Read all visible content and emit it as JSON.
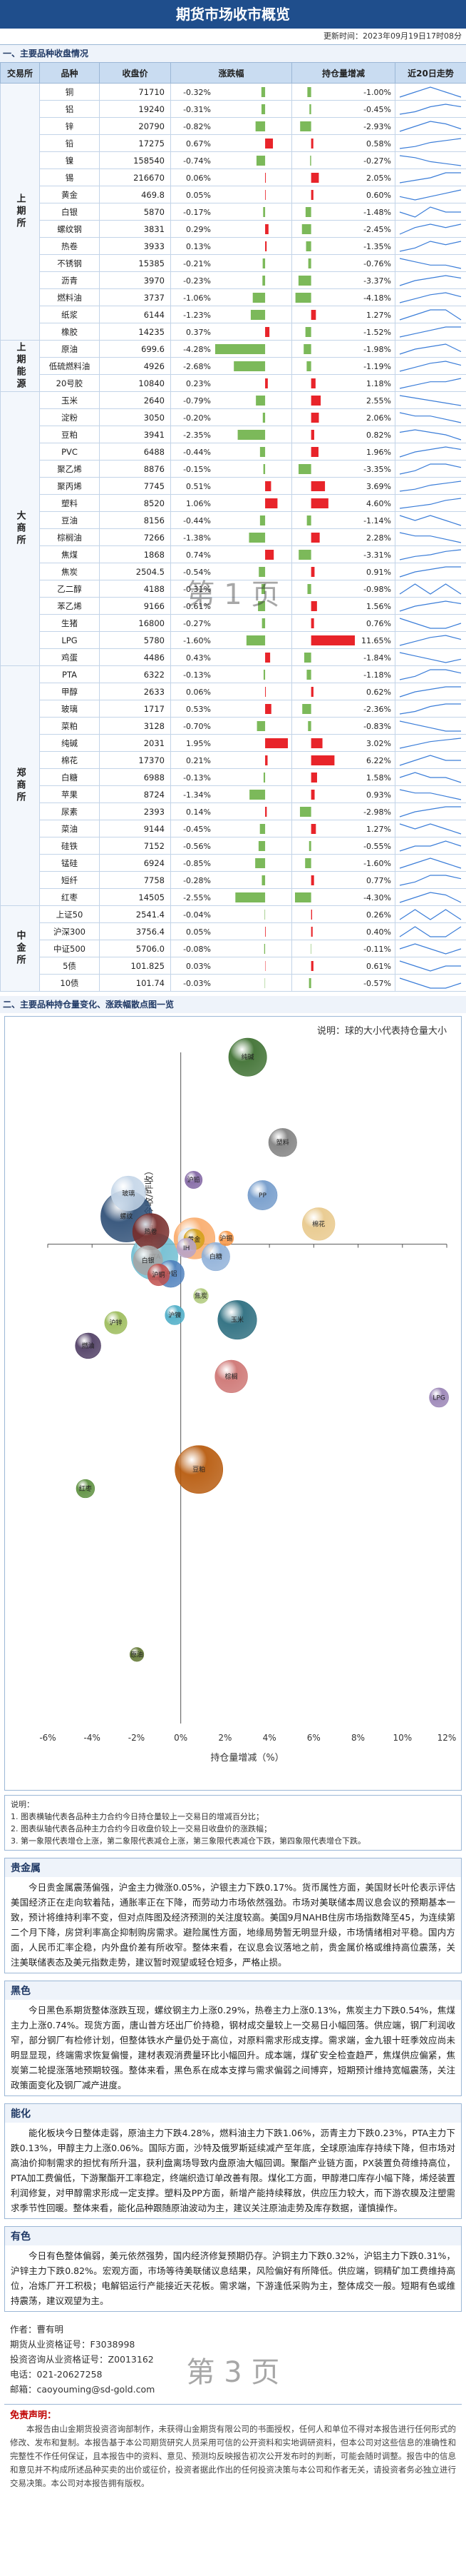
{
  "header": {
    "title": "期货市场收市概览",
    "update": "更新时间：2023年09月19日17时08分"
  },
  "sections": {
    "one": "一、主要品种收盘情况",
    "two": "二、主要品种持仓量变化、涨跌幅散点图一览"
  },
  "watermarks": [
    "第 1 页",
    "第 3 页"
  ],
  "table": {
    "columns": [
      "交易所",
      "品种",
      "收盘价",
      "涨跌幅",
      "持仓量增减",
      "近20日走势"
    ],
    "groups": [
      {
        "exchange": "上期所",
        "rows": [
          [
            "铜",
            "71710",
            -0.32,
            "-0.32%",
            -1.0,
            "-1.00%",
            [
              5,
              6,
              7,
              6,
              5
            ]
          ],
          [
            "铝",
            "19240",
            -0.31,
            "-0.31%",
            -0.45,
            "-0.45%",
            [
              3,
              4,
              6,
              7,
              6
            ]
          ],
          [
            "锌",
            "20790",
            -0.82,
            "-0.82%",
            -2.93,
            "-2.93%",
            [
              4,
              6,
              8,
              7,
              5
            ]
          ],
          [
            "铅",
            "17275",
            0.67,
            "0.67%",
            0.58,
            "0.58%",
            [
              2,
              3,
              5,
              6,
              7
            ]
          ],
          [
            "镍",
            "158540",
            -0.74,
            "-0.74%",
            -0.27,
            "-0.27%",
            [
              8,
              7,
              5,
              4,
              3
            ]
          ],
          [
            "锡",
            "216670",
            0.06,
            "0.06%",
            2.05,
            "2.05%",
            [
              4,
              5,
              6,
              8,
              8
            ]
          ],
          [
            "黄金",
            "469.8",
            0.05,
            "0.05%",
            0.6,
            "0.60%",
            [
              5,
              4,
              5,
              6,
              7
            ]
          ],
          [
            "白银",
            "5870",
            -0.17,
            "-0.17%",
            -1.48,
            "-1.48%",
            [
              6,
              5,
              7,
              6,
              6
            ]
          ],
          [
            "螺纹钢",
            "3831",
            0.29,
            "0.29%",
            -2.45,
            "-2.45%",
            [
              3,
              5,
              6,
              5,
              6
            ]
          ],
          [
            "热卷",
            "3933",
            0.13,
            "0.13%",
            -1.35,
            "-1.35%",
            [
              3,
              4,
              6,
              5,
              6
            ]
          ],
          [
            "不锈钢",
            "15385",
            -0.21,
            "-0.21%",
            -0.76,
            "-0.76%",
            [
              7,
              6,
              5,
              5,
              4
            ]
          ],
          [
            "沥青",
            "3970",
            -0.23,
            "-0.23%",
            -3.37,
            "-3.37%",
            [
              4,
              6,
              7,
              8,
              7
            ]
          ],
          [
            "燃料油",
            "3737",
            -1.06,
            "-1.06%",
            -4.18,
            "-4.18%",
            [
              3,
              5,
              7,
              8,
              6
            ]
          ],
          [
            "纸浆",
            "6144",
            -1.23,
            "-1.23%",
            1.27,
            "1.27%",
            [
              5,
              6,
              7,
              7,
              5
            ]
          ],
          [
            "橡胶",
            "14235",
            0.37,
            "0.37%",
            -1.52,
            "-1.52%",
            [
              4,
              5,
              6,
              7,
              7
            ]
          ]
        ]
      },
      {
        "exchange": "上期能源",
        "rows": [
          [
            "原油",
            "699.6",
            -4.28,
            "-4.28%",
            -1.98,
            "-1.98%",
            [
              4,
              6,
              7,
              8,
              5
            ]
          ],
          [
            "低硫燃料油",
            "4926",
            -2.68,
            "-2.68%",
            -1.19,
            "-1.19%",
            [
              3,
              5,
              7,
              8,
              6
            ]
          ],
          [
            "20号胶",
            "10840",
            0.23,
            "0.23%",
            1.18,
            "1.18%",
            [
              4,
              5,
              6,
              6,
              7
            ]
          ]
        ]
      },
      {
        "exchange": "大商所",
        "rows": [
          [
            "玉米",
            "2640",
            -0.79,
            "-0.79%",
            2.55,
            "2.55%",
            [
              7,
              6,
              5,
              4,
              3
            ]
          ],
          [
            "淀粉",
            "3050",
            -0.2,
            "-0.20%",
            2.06,
            "2.06%",
            [
              7,
              6,
              6,
              5,
              4
            ]
          ],
          [
            "豆粕",
            "3941",
            -2.35,
            "-2.35%",
            0.82,
            "0.82%",
            [
              6,
              7,
              6,
              5,
              3
            ]
          ],
          [
            "PVC",
            "6488",
            -0.44,
            "-0.44%",
            1.96,
            "1.96%",
            [
              3,
              5,
              6,
              7,
              6
            ]
          ],
          [
            "聚乙烯",
            "8876",
            -0.15,
            "-0.15%",
            -3.35,
            "-3.35%",
            [
              4,
              5,
              7,
              7,
              6
            ]
          ],
          [
            "聚丙烯",
            "7745",
            0.51,
            "0.51%",
            3.69,
            "3.69%",
            [
              3,
              4,
              6,
              7,
              8
            ]
          ],
          [
            "塑料",
            "8520",
            1.06,
            "1.06%",
            4.6,
            "4.60%",
            [
              3,
              4,
              5,
              7,
              8
            ]
          ],
          [
            "豆油",
            "8156",
            -0.44,
            "-0.44%",
            -1.14,
            "-1.14%",
            [
              6,
              5,
              6,
              5,
              4
            ]
          ],
          [
            "棕榈油",
            "7266",
            -1.38,
            "-1.38%",
            2.28,
            "2.28%",
            [
              6,
              5,
              5,
              4,
              3
            ]
          ],
          [
            "焦煤",
            "1868",
            0.74,
            "0.74%",
            -3.31,
            "-3.31%",
            [
              2,
              4,
              5,
              7,
              8
            ]
          ],
          [
            "焦炭",
            "2504.5",
            -0.54,
            "-0.54%",
            0.91,
            "0.91%",
            [
              3,
              5,
              6,
              7,
              7
            ]
          ],
          [
            "乙二醇",
            "4188",
            -0.31,
            "-0.31%",
            -0.98,
            "-0.98%",
            [
              5,
              6,
              5,
              6,
              5
            ]
          ],
          [
            "苯乙烯",
            "9166",
            -0.61,
            "-0.61%",
            1.56,
            "1.56%",
            [
              4,
              6,
              7,
              8,
              7
            ]
          ],
          [
            "生猪",
            "16800",
            -0.27,
            "-0.27%",
            0.76,
            "0.76%",
            [
              6,
              5,
              4,
              4,
              5
            ]
          ],
          [
            "LPG",
            "5780",
            -1.6,
            "-1.60%",
            11.65,
            "11.65%",
            [
              3,
              5,
              7,
              8,
              6
            ]
          ],
          [
            "鸡蛋",
            "4486",
            0.43,
            "0.43%",
            -1.84,
            "-1.84%",
            [
              7,
              6,
              5,
              4,
              5
            ]
          ]
        ]
      },
      {
        "exchange": "郑商所",
        "rows": [
          [
            "PTA",
            "6322",
            -0.13,
            "-0.13%",
            -1.18,
            "-1.18%",
            [
              4,
              5,
              7,
              7,
              6
            ]
          ],
          [
            "甲醇",
            "2633",
            0.06,
            "0.06%",
            0.62,
            "0.62%",
            [
              3,
              5,
              6,
              7,
              7
            ]
          ],
          [
            "玻璃",
            "1717",
            0.53,
            "0.53%",
            -2.36,
            "-2.36%",
            [
              3,
              4,
              6,
              7,
              7
            ]
          ],
          [
            "菜粕",
            "3128",
            -0.7,
            "-0.70%",
            -0.83,
            "-0.83%",
            [
              7,
              6,
              5,
              4,
              4
            ]
          ],
          [
            "纯碱",
            "2031",
            1.95,
            "1.95%",
            3.02,
            "3.02%",
            [
              2,
              4,
              6,
              7,
              8
            ]
          ],
          [
            "棉花",
            "17370",
            0.21,
            "0.21%",
            6.22,
            "6.22%",
            [
              5,
              6,
              7,
              6,
              6
            ]
          ],
          [
            "白糖",
            "6988",
            -0.13,
            "-0.13%",
            1.58,
            "1.58%",
            [
              6,
              7,
              6,
              6,
              5
            ]
          ],
          [
            "苹果",
            "8724",
            -1.34,
            "-1.34%",
            0.93,
            "0.93%",
            [
              7,
              6,
              6,
              5,
              4
            ]
          ],
          [
            "尿素",
            "2393",
            0.14,
            "0.14%",
            -2.98,
            "-2.98%",
            [
              3,
              5,
              6,
              7,
              7
            ]
          ],
          [
            "菜油",
            "9144",
            -0.45,
            "-0.45%",
            1.27,
            "1.27%",
            [
              6,
              5,
              6,
              5,
              4
            ]
          ],
          [
            "硅铁",
            "7152",
            -0.56,
            "-0.56%",
            -0.55,
            "-0.55%",
            [
              5,
              6,
              6,
              7,
              6
            ]
          ],
          [
            "锰硅",
            "6924",
            -0.85,
            "-0.85%",
            -1.6,
            "-1.60%",
            [
              5,
              6,
              7,
              6,
              5
            ]
          ],
          [
            "短纤",
            "7758",
            -0.28,
            "-0.28%",
            0.77,
            "0.77%",
            [
              4,
              5,
              7,
              7,
              6
            ]
          ],
          [
            "红枣",
            "14505",
            -2.55,
            "-2.55%",
            -4.3,
            "-4.30%",
            [
              4,
              6,
              8,
              7,
              4
            ]
          ]
        ]
      },
      {
        "exchange": "中金所",
        "rows": [
          [
            "上证50",
            "2541.4",
            -0.04,
            "-0.04%",
            0.26,
            "0.26%",
            [
              4,
              5,
              4,
              5,
              4
            ]
          ],
          [
            "沪深300",
            "3756.4",
            0.05,
            "0.05%",
            0.4,
            "0.40%",
            [
              4,
              5,
              4,
              4,
              5
            ]
          ],
          [
            "中证500",
            "5706.0",
            -0.08,
            "-0.08%",
            -0.11,
            "-0.11%",
            [
              5,
              6,
              5,
              4,
              5
            ]
          ],
          [
            "5债",
            "101.825",
            0.03,
            "0.03%",
            0.61,
            "0.61%",
            [
              6,
              5,
              4,
              5,
              5
            ]
          ],
          [
            "10债",
            "101.74",
            -0.03,
            "-0.03%",
            -0.57,
            "-0.57%",
            [
              6,
              5,
              4,
              4,
              5
            ]
          ]
        ]
      }
    ]
  },
  "chart_data": {
    "type": "scatter",
    "note": "说明：球的大小代表持仓量大小",
    "xlabel": "持仓量增减（%）",
    "ylabel": "涨跌幅（今收/昨收）",
    "xlim": [
      -6,
      12
    ],
    "xticks": [
      {
        "value": -6,
        "label": "-6%"
      },
      {
        "value": -4,
        "label": "-4%"
      },
      {
        "value": -2,
        "label": "-2%"
      },
      {
        "value": 0,
        "label": "0%"
      },
      {
        "value": 2,
        "label": "2%"
      },
      {
        "value": 4,
        "label": "4%"
      },
      {
        "value": 6,
        "label": "6%"
      },
      {
        "value": 8,
        "label": "8%"
      },
      {
        "value": 10,
        "label": "10%"
      },
      {
        "value": 12,
        "label": "12%"
      }
    ],
    "ylim": [
      -5,
      2
    ],
    "labels": [
      "沪铜",
      "沪铝",
      "沪锌",
      "沪铅",
      "沪镍",
      "沪锡",
      "黄金",
      "白银",
      "螺纹",
      "热卷",
      "原油",
      "燃油",
      "玉米",
      "豆粕",
      "塑料",
      "PP",
      "棕榈",
      "焦炭",
      "LPG",
      "PTA",
      "甲醇",
      "玻璃",
      "纯碱",
      "棉花",
      "白糖",
      "IF",
      "IH",
      "红枣"
    ],
    "x": [
      -1.0,
      -0.45,
      -2.93,
      0.58,
      -0.27,
      2.05,
      0.6,
      -1.48,
      -2.45,
      -1.35,
      -1.98,
      -4.18,
      2.55,
      0.82,
      4.6,
      3.69,
      2.28,
      0.91,
      11.65,
      -1.18,
      0.62,
      -2.36,
      3.02,
      6.22,
      1.58,
      0.4,
      0.26,
      -4.3
    ],
    "y": [
      -0.32,
      -0.31,
      -0.82,
      0.67,
      -0.74,
      0.06,
      0.05,
      -0.17,
      0.29,
      0.13,
      -4.28,
      -1.06,
      -0.79,
      -2.35,
      1.06,
      0.51,
      -1.38,
      -0.54,
      -1.6,
      -0.13,
      0.06,
      0.53,
      1.95,
      0.21,
      -0.13,
      0.05,
      -0.04,
      -2.55
    ],
    "sizes": [
      18,
      35,
      20,
      8,
      12,
      4,
      15,
      45,
      190,
      80,
      3,
      30,
      95,
      160,
      40,
      45,
      60,
      4,
      12,
      150,
      110,
      70,
      90,
      60,
      40,
      22,
      12,
      10
    ],
    "colors": [
      "#c0504d",
      "#4f81bd",
      "#9bbb59",
      "#8064a2",
      "#4bacc6",
      "#f79646",
      "#d4a017",
      "#a5a5a5",
      "#2c4d75",
      "#772c2a",
      "#5f7530",
      "#4d3b62",
      "#276a7c",
      "#b65708",
      "#7f7f7f",
      "#729aca",
      "#cd7371",
      "#afc97a",
      "#9983b5",
      "#6fbdd1",
      "#f9ab6b",
      "#c5d6e8",
      "#3b6e2e",
      "#e8c88a",
      "#8fb0d8",
      "#d9e4f0",
      "#b7a4c9",
      "#5a8e3c"
    ]
  },
  "notes": [
    "说明：",
    "1. 图表横轴代表各品种主力合约今日持仓量较上一交易日的增减百分比；",
    "2. 图表纵轴代表各品种主力合约今日收盘价较上一交易日收盘价的涨跌幅；",
    "3. 第一象限代表增仓上涨，第二象限代表减仓上涨，第三象限代表减仓下跌，第四象限代表增仓下跌。"
  ],
  "reports": [
    {
      "heading": "贵金属",
      "text": "今日贵金属震荡偏强，沪金主力微涨0.05%，沪银主力下跌0.17%。货币属性方面，美国财长叶伦表示评估美国经济正在走向软着陆，通胀率正在下降，而劳动力市场依然强劲。市场对美联储本周议息会议的预期基本一致，预计将维持利率不变，但对点阵图及经济预测的关注度较高。美国9月NAHB住房市场指数降至45，为连续第二个月下降，房贷利率高企抑制购房需求。避险属性方面，地缘局势暂无明显升级，市场情绪相对平稳。国内方面，人民币汇率企稳，内外盘价差有所收窄。整体来看，在议息会议落地之前，贵金属价格或维持高位震荡，关注美联储表态及美元指数走势，建议暂时观望或轻仓短多，严格止损。"
    },
    {
      "heading": "黑色",
      "text": "今日黑色系期货整体涨跌互现，螺纹钢主力上涨0.29%，热卷主力上涨0.13%，焦炭主力下跌0.54%，焦煤主力上涨0.74%。现货方面，唐山普方坯出厂价持稳，钢材成交量较上一交易日小幅回落。供应端，钢厂利润收窄，部分钢厂有检修计划，但整体铁水产量仍处于高位，对原料需求形成支撑。需求端，金九银十旺季效应尚未明显显现，终端需求恢复偏慢，建材表观消费量环比小幅回升。成本端，煤矿安全检查趋严，焦煤供应偏紧，焦炭第二轮提涨落地预期较强。整体来看，黑色系在成本支撑与需求偏弱之间博弈，短期预计维持宽幅震荡，关注政策面变化及钢厂减产进度。"
    },
    {
      "heading": "能化",
      "text": "能化板块今日整体走弱，原油主力下跌4.28%，燃料油主力下跌1.06%，沥青主力下跌0.23%，PTA主力下跌0.13%，甲醇主力上涨0.06%。国际方面，沙特及俄罗斯延续减产至年底，全球原油库存持续下降，但市场对高油价抑制需求的担忧有所升温，获利盘离场导致内盘原油大幅回调。聚酯产业链方面，PX装置负荷维持高位，PTA加工费偏低，下游聚酯开工率稳定，终端织造订单改善有限。煤化工方面，甲醇港口库存小幅下降，烯烃装置利润修复，对甲醇需求形成一定支撑。塑料及PP方面，新增产能持续释放，供应压力较大，而下游农膜及注塑需求季节性回暖。整体来看，能化品种跟随原油波动为主，建议关注原油走势及库存数据，谨慎操作。"
    },
    {
      "heading": "有色",
      "text": "今日有色整体偏弱，美元依然强势，国内经济修复预期仍存。沪铜主力下跌0.32%，沪铝主力下跌0.31%，沪锌主力下跌0.82%。宏观方面，市场等待美联储议息结果，风险偏好有所降低。供应端，铜精矿加工费维持高位，冶炼厂开工积极；电解铝运行产能接近天花板。需求端，下游逢低采购为主，整体成交一般。短期有色或维持震荡，建议观望为主。"
    }
  ],
  "author": [
    "作者：曹有明",
    "期货从业资格证号：F3038998",
    "投资咨询从业资格证号：Z0013162",
    "电话：021-20627258",
    "邮箱：caoyouming@sd-gold.com"
  ],
  "disclaimer": {
    "heading": "免责声明：",
    "text": "本报告由山金期货投资咨询部制作，未获得山金期货有限公司的书面授权，任何人和单位不得对本报告进行任何形式的修改、发布和复制。本报告基于本公司期货研究人员采用可信的公开资料和实地调研资料，但本公司对这些信息的准确性和完整性不作任何保证，且本报告中的资料、意见、预测均反映报告初次公开发布时的判断，可能会随时调整。报告中的信息和意见并不构成所述品种买卖的出价或征价，投资者据此作出的任何投资决策与本公司和作者无关，请投资者务必独立进行交易决策。本公司对本报告拥有版权。"
  }
}
